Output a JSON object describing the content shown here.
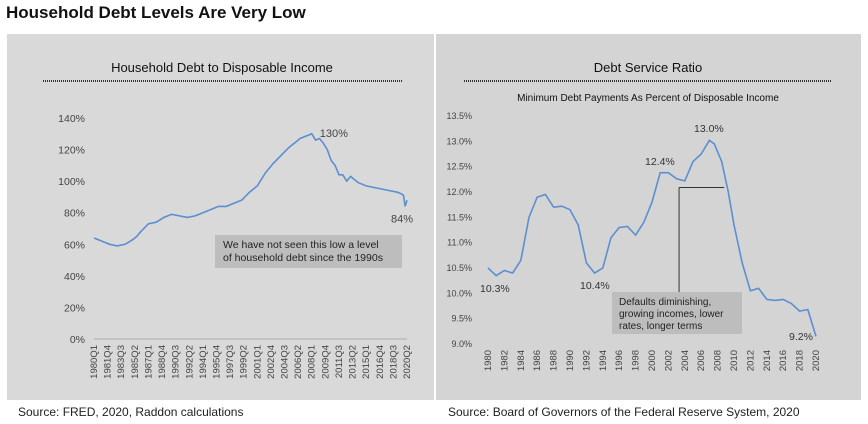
{
  "page_title": "Household Debt Levels Are Very Low",
  "sources": {
    "left": "Source: FRED, 2020, Raddon calculations",
    "right": "Source: Board of Governors of the Federal Reserve System, 2020"
  },
  "chart_data": [
    {
      "type": "line",
      "title": "Household Debt to Disposable Income",
      "subtitle": "",
      "xlabel": "",
      "ylabel": "",
      "ylim": [
        0,
        140
      ],
      "yticks": [
        "0%",
        "20%",
        "40%",
        "60%",
        "80%",
        "100%",
        "120%",
        "140%"
      ],
      "xticks": [
        "1980Q1",
        "1981Q4",
        "1983Q3",
        "1985Q2",
        "1987Q1",
        "1988Q4",
        "1990Q3",
        "1992Q2",
        "1994Q1",
        "1995Q4",
        "1997Q3",
        "1999Q2",
        "2001Q1",
        "2002Q4",
        "2004Q3",
        "2006Q2",
        "2008Q1",
        "2009Q4",
        "2011Q3",
        "2013Q2",
        "2015Q1",
        "2016Q4",
        "2018Q3",
        "2020Q2"
      ],
      "grid": false,
      "color": "#5b8fd0",
      "series": [
        {
          "x": [
            1980.0,
            1981.0,
            1982.0,
            1983.0,
            1984.0,
            1985.0,
            1985.5,
            1986.0,
            1987.0,
            1988.0,
            1989.0,
            1990.0,
            1991.0,
            1992.0,
            1993.0,
            1994.0,
            1995.0,
            1996.0,
            1997.0,
            1998.0,
            1999.0,
            2000.0,
            2001.0,
            2002.0,
            2003.0,
            2004.0,
            2005.0,
            2005.5,
            2006.0,
            2006.5,
            2007.0,
            2007.5,
            2008.0,
            2008.5,
            2009.0,
            2009.5,
            2010.0,
            2010.5,
            2011.0,
            2011.5,
            2012.0,
            2012.5,
            2013.0,
            2013.5,
            2014.0,
            2015.0,
            2016.0,
            2017.0,
            2018.0,
            2019.0,
            2019.5,
            2019.8,
            2020.0,
            2020.25
          ],
          "y": [
            64,
            62,
            60,
            59,
            60,
            63,
            65,
            68,
            73,
            74,
            77,
            79,
            78,
            77,
            78,
            80,
            82,
            84,
            84,
            86,
            88,
            93,
            97,
            105,
            111,
            116,
            121,
            123,
            125,
            127,
            128,
            129,
            130,
            126,
            127,
            124,
            120,
            113,
            110,
            104,
            104,
            100,
            103,
            101,
            99,
            97,
            96,
            95,
            94,
            93,
            92,
            91,
            84,
            88
          ]
        }
      ],
      "annotations": [
        {
          "text": "130%",
          "x": 2008.0,
          "y": 130
        },
        {
          "text": "84%",
          "x": 2020.0,
          "y": 84
        },
        {
          "text_lines": [
            "We have not seen this low a level",
            "of household debt since the 1990s"
          ]
        }
      ]
    },
    {
      "type": "line",
      "title": "Debt Service Ratio",
      "subtitle": "Minimum Debt Payments As Percent of Disposable Income",
      "xlabel": "",
      "ylabel": "",
      "ylim": [
        9.0,
        13.5
      ],
      "yticks": [
        "9.0%",
        "9.5%",
        "10.0%",
        "10.5%",
        "11.0%",
        "11.5%",
        "12.0%",
        "12.5%",
        "13.0%",
        "13.5%"
      ],
      "xticks": [
        "1980",
        "1982",
        "1984",
        "1986",
        "1988",
        "1990",
        "1992",
        "1994",
        "1996",
        "1998",
        "2000",
        "2002",
        "2004",
        "2006",
        "2008",
        "2010",
        "2012",
        "2014",
        "2016",
        "2018",
        "2020"
      ],
      "grid": false,
      "color": "#5b8fd0",
      "series": [
        {
          "x": [
            1980,
            1981,
            1982,
            1983,
            1984,
            1985,
            1986,
            1987,
            1988,
            1989,
            1990,
            1991,
            1992,
            1993,
            1994,
            1995,
            1996,
            1997,
            1998,
            1999,
            2000,
            2001,
            2002,
            2003,
            2004,
            2005,
            2006,
            2007,
            2007.6,
            2008.5,
            2009.3,
            2010,
            2011,
            2012,
            2013,
            2014,
            2015,
            2016,
            2017,
            2018,
            2019,
            2020
          ],
          "y": [
            10.5,
            10.35,
            10.45,
            10.4,
            10.65,
            11.5,
            11.9,
            11.95,
            11.7,
            11.72,
            11.65,
            11.35,
            10.6,
            10.4,
            10.5,
            11.1,
            11.3,
            11.32,
            11.15,
            11.4,
            11.8,
            12.38,
            12.38,
            12.26,
            12.22,
            12.6,
            12.75,
            13.02,
            12.95,
            12.6,
            12.0,
            11.35,
            10.6,
            10.05,
            10.1,
            9.88,
            9.86,
            9.88,
            9.8,
            9.65,
            9.68,
            9.15
          ]
        }
      ],
      "annotations": [
        {
          "text": "10.3%",
          "x": 1981,
          "y": 10.3
        },
        {
          "text": "10.4%",
          "x": 1993,
          "y": 10.4
        },
        {
          "text": "12.4%",
          "x": 2002,
          "y": 12.4
        },
        {
          "text": "13.0%",
          "x": 2007,
          "y": 13.0
        },
        {
          "text": "9.2%",
          "x": 2019,
          "y": 9.2
        },
        {
          "text_lines": [
            "Defaults diminishing,",
            "growing incomes, lower",
            "rates, longer terms"
          ]
        }
      ]
    }
  ]
}
